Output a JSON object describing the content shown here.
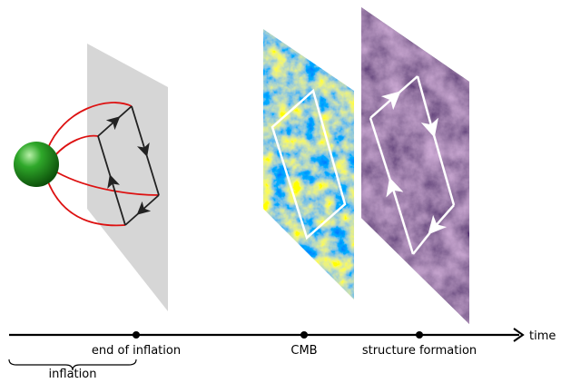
{
  "timeline": {
    "axis_label": "time",
    "events": [
      "end of inflation",
      "CMB",
      "structure formation"
    ],
    "period": "inflation"
  }
}
